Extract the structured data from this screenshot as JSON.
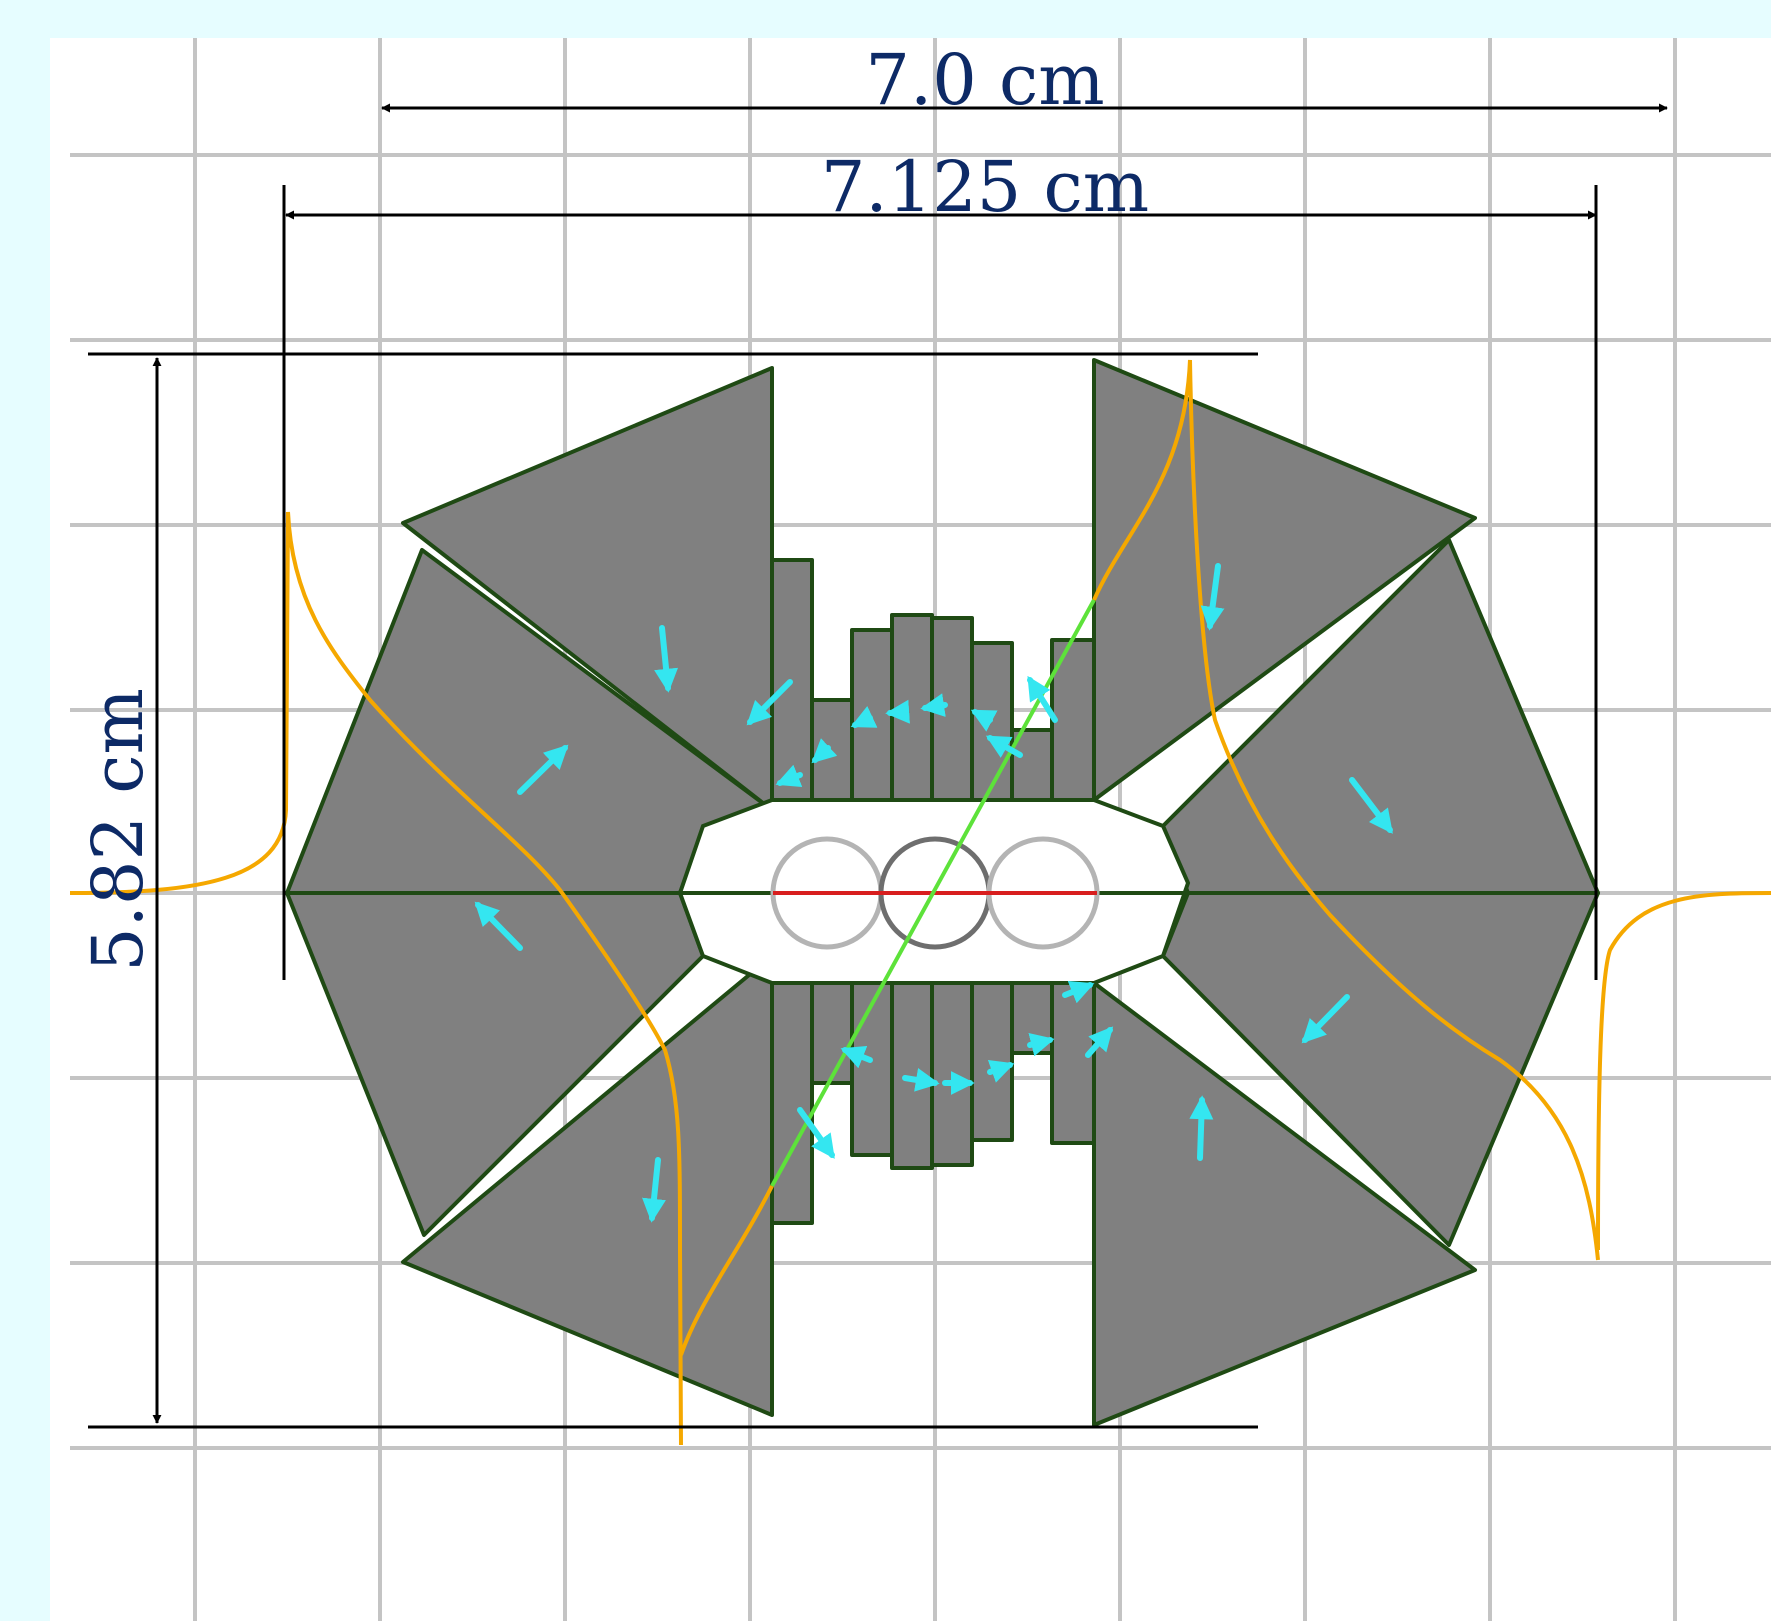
{
  "labels": {
    "width_outer": "7.0 cm",
    "width_inner": "7.125 cm",
    "height": "5.82 cm"
  },
  "colors": {
    "background": "#e6fdff",
    "grid": "#c4c4c4",
    "panel_fill": "#808080",
    "panel_stroke": "#1f4a14",
    "field_curve": "#f5a800",
    "arrows": "#34e6f0",
    "diagonal": "#5de23a",
    "midline": "#d81e1e",
    "dim_text": "#0d2a66"
  },
  "icons": {
    "magnetization": "arrow-icon",
    "beam_pipe": "circle-outline-icon"
  }
}
